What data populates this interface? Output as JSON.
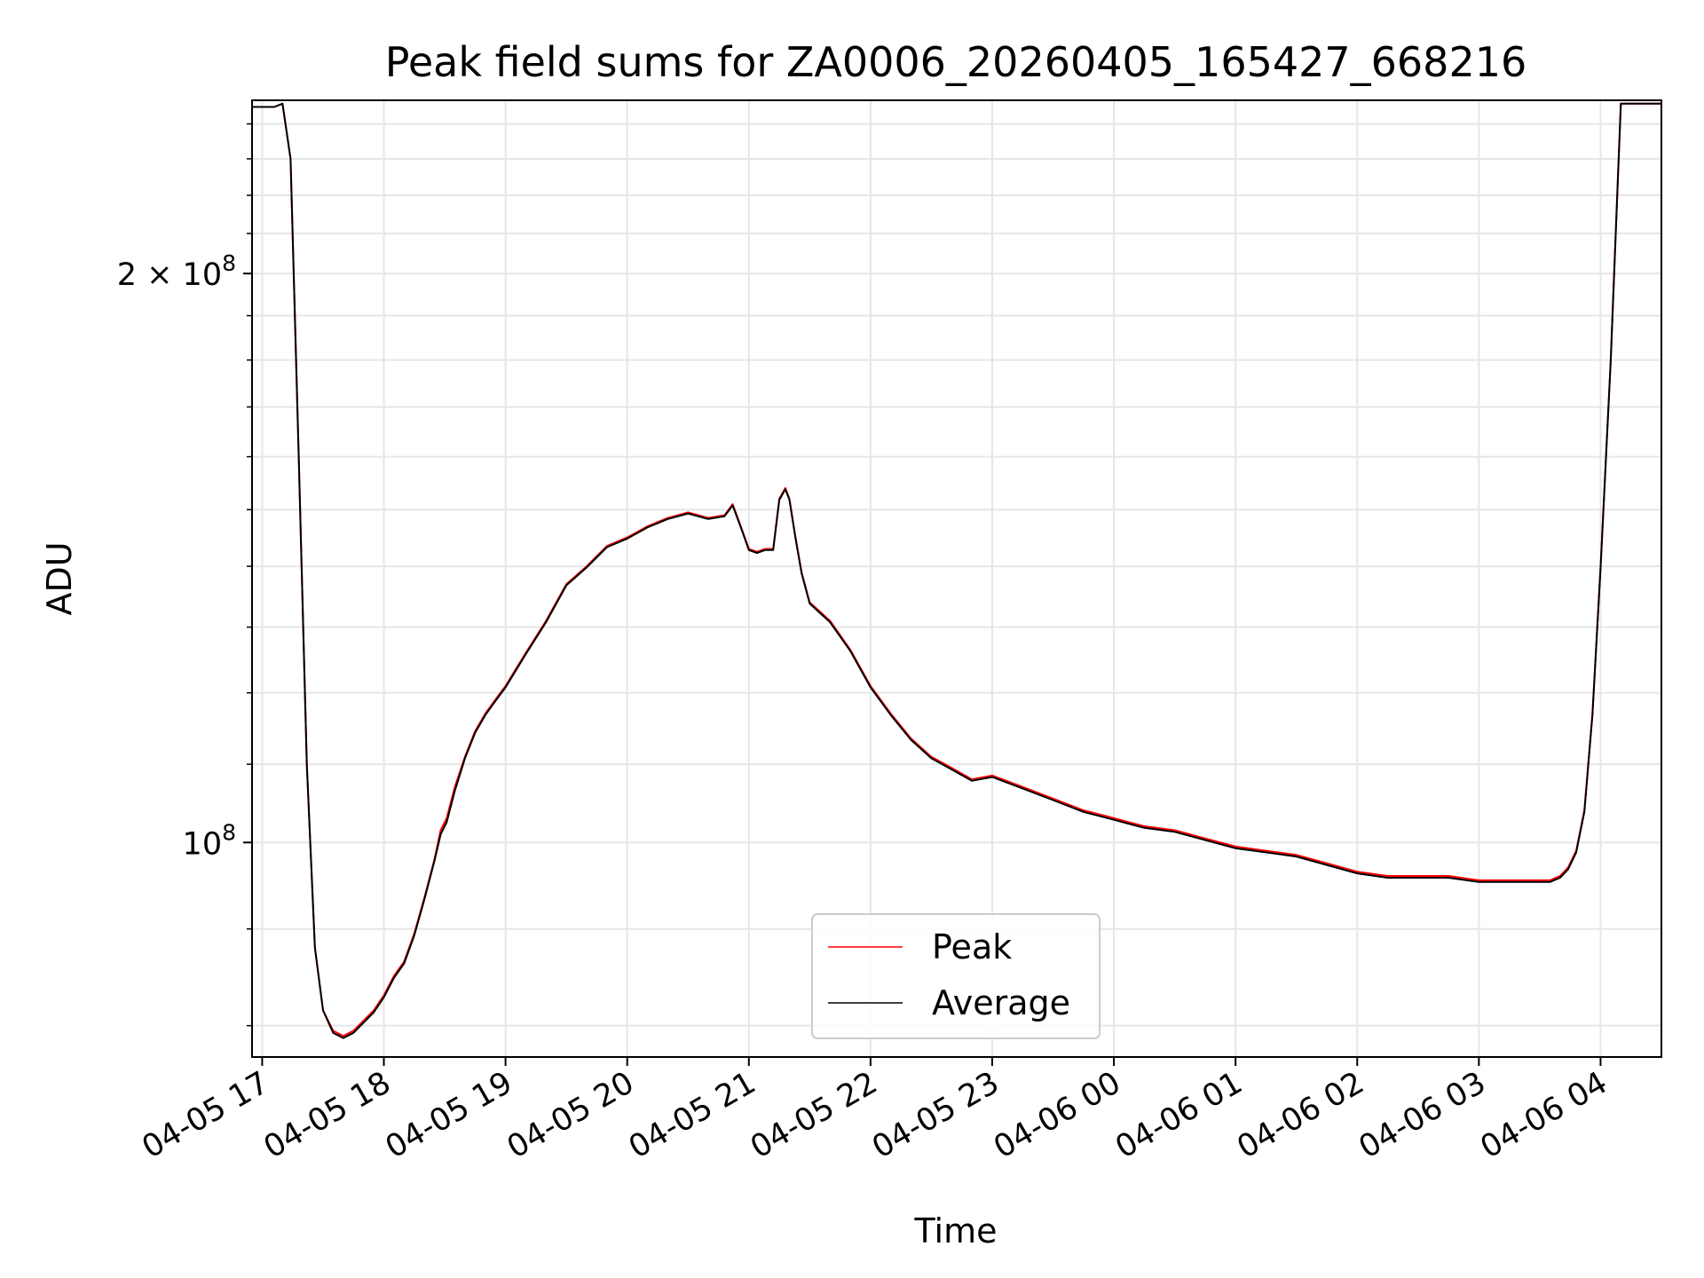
{
  "chart_data": {
    "type": "line",
    "title": "Peak field sums for ZA0006_20260405_165427_668216",
    "xlabel": "Time",
    "ylabel": "ADU",
    "yscale": "log",
    "ylim": [
      77000000,
      247000000
    ],
    "xlim": [
      "04-05 16:55",
      "04-06 04:30"
    ],
    "grid": true,
    "legend_position": "lower-center",
    "x_ticks": [
      "04-05 17",
      "04-05 18",
      "04-05 19",
      "04-05 20",
      "04-05 21",
      "04-05 22",
      "04-05 23",
      "04-06 00",
      "04-06 01",
      "04-06 02",
      "04-06 03",
      "04-06 04"
    ],
    "y_ticks": [
      {
        "value": 100000000,
        "label_base": "10",
        "label_exp": "8"
      },
      {
        "value": 200000000,
        "label_base": "2 × 10",
        "label_exp": "8"
      }
    ],
    "series": [
      {
        "name": "Peak",
        "color": "#ff0000",
        "x": [
          "04-05 16:55",
          "04-05 17:00",
          "04-05 17:03",
          "04-05 17:06",
          "04-05 17:10",
          "04-05 17:14",
          "04-05 17:18",
          "04-05 17:22",
          "04-05 17:26",
          "04-05 17:30",
          "04-05 17:35",
          "04-05 17:40",
          "04-05 17:45",
          "04-05 17:50",
          "04-05 17:55",
          "04-05 18:00",
          "04-05 18:05",
          "04-05 18:10",
          "04-05 18:15",
          "04-05 18:20",
          "04-05 18:25",
          "04-05 18:28",
          "04-05 18:31",
          "04-05 18:35",
          "04-05 18:40",
          "04-05 18:45",
          "04-05 18:50",
          "04-05 18:55",
          "04-05 19:00",
          "04-05 19:10",
          "04-05 19:20",
          "04-05 19:30",
          "04-05 19:40",
          "04-05 19:50",
          "04-05 20:00",
          "04-05 20:10",
          "04-05 20:20",
          "04-05 20:30",
          "04-05 20:40",
          "04-05 20:48",
          "04-05 20:52",
          "04-05 20:56",
          "04-05 21:00",
          "04-05 21:04",
          "04-05 21:08",
          "04-05 21:12",
          "04-05 21:15",
          "04-05 21:18",
          "04-05 21:20",
          "04-05 21:23",
          "04-05 21:26",
          "04-05 21:30",
          "04-05 21:40",
          "04-05 21:50",
          "04-05 22:00",
          "04-05 22:10",
          "04-05 22:20",
          "04-05 22:30",
          "04-05 22:40",
          "04-05 22:50",
          "04-05 23:00",
          "04-05 23:15",
          "04-05 23:30",
          "04-05 23:45",
          "04-06 00:00",
          "04-06 00:15",
          "04-06 00:30",
          "04-06 00:45",
          "04-06 01:00",
          "04-06 01:15",
          "04-06 01:30",
          "04-06 01:45",
          "04-06 02:00",
          "04-06 02:15",
          "04-06 02:30",
          "04-06 02:45",
          "04-06 03:00",
          "04-06 03:15",
          "04-06 03:25",
          "04-06 03:30",
          "04-06 03:35",
          "04-06 03:40",
          "04-06 03:44",
          "04-06 03:48",
          "04-06 03:52",
          "04-06 03:56",
          "04-06 04:00",
          "04-06 04:05",
          "04-06 04:10",
          "04-06 04:20",
          "04-06 04:30"
        ],
        "y": [
          245000000,
          245000000,
          245000000,
          245000000,
          246000000,
          230000000,
          160000000,
          110000000,
          88000000,
          81500000,
          79500000,
          79000000,
          79500000,
          80500000,
          81500000,
          83000000,
          85000000,
          86500000,
          89500000,
          93500000,
          98000000,
          101500000,
          103000000,
          107000000,
          111000000,
          114500000,
          117000000,
          119000000,
          121000000,
          126000000,
          131000000,
          137000000,
          140000000,
          143500000,
          145000000,
          147000000,
          148500000,
          149500000,
          148500000,
          149000000,
          151000000,
          147000000,
          143000000,
          142500000,
          143000000,
          143000000,
          152000000,
          154000000,
          152000000,
          145000000,
          139000000,
          134000000,
          131000000,
          126500000,
          121000000,
          117000000,
          113500000,
          111000000,
          109500000,
          108000000,
          108500000,
          107000000,
          105500000,
          104000000,
          103000000,
          102000000,
          101500000,
          100500000,
          99500000,
          99000000,
          98500000,
          97500000,
          96500000,
          96000000,
          96000000,
          96000000,
          95500000,
          95500000,
          95500000,
          95500000,
          95500000,
          96000000,
          97000000,
          99000000,
          104000000,
          117000000,
          140000000,
          180000000,
          246000000,
          246000000,
          246000000
        ]
      },
      {
        "name": "Average",
        "color": "#000000",
        "x": [
          "04-05 16:55",
          "04-05 17:00",
          "04-05 17:03",
          "04-05 17:06",
          "04-05 17:10",
          "04-05 17:14",
          "04-05 17:18",
          "04-05 17:22",
          "04-05 17:26",
          "04-05 17:30",
          "04-05 17:35",
          "04-05 17:40",
          "04-05 17:45",
          "04-05 17:50",
          "04-05 17:55",
          "04-05 18:00",
          "04-05 18:05",
          "04-05 18:10",
          "04-05 18:15",
          "04-05 18:20",
          "04-05 18:25",
          "04-05 18:28",
          "04-05 18:31",
          "04-05 18:35",
          "04-05 18:40",
          "04-05 18:45",
          "04-05 18:50",
          "04-05 18:55",
          "04-05 19:00",
          "04-05 19:10",
          "04-05 19:20",
          "04-05 19:30",
          "04-05 19:40",
          "04-05 19:50",
          "04-05 20:00",
          "04-05 20:10",
          "04-05 20:20",
          "04-05 20:30",
          "04-05 20:40",
          "04-05 20:48",
          "04-05 20:52",
          "04-05 20:56",
          "04-05 21:00",
          "04-05 21:04",
          "04-05 21:08",
          "04-05 21:12",
          "04-05 21:15",
          "04-05 21:18",
          "04-05 21:20",
          "04-05 21:23",
          "04-05 21:26",
          "04-05 21:30",
          "04-05 21:40",
          "04-05 21:50",
          "04-05 22:00",
          "04-05 22:10",
          "04-05 22:20",
          "04-05 22:30",
          "04-05 22:40",
          "04-05 22:50",
          "04-05 23:00",
          "04-05 23:15",
          "04-05 23:30",
          "04-05 23:45",
          "04-06 00:00",
          "04-06 00:15",
          "04-06 00:30",
          "04-06 00:45",
          "04-06 01:00",
          "04-06 01:15",
          "04-06 01:30",
          "04-06 01:45",
          "04-06 02:00",
          "04-06 02:15",
          "04-06 02:30",
          "04-06 02:45",
          "04-06 03:00",
          "04-06 03:15",
          "04-06 03:25",
          "04-06 03:30",
          "04-06 03:35",
          "04-06 03:40",
          "04-06 03:44",
          "04-06 03:48",
          "04-06 03:52",
          "04-06 03:56",
          "04-06 04:00",
          "04-06 04:05",
          "04-06 04:10",
          "04-06 04:20",
          "04-06 04:30"
        ],
        "y": [
          245000000,
          245000000,
          245000000,
          245000000,
          246000000,
          230000000,
          160000000,
          110000000,
          88000000,
          81500000,
          79300000,
          78800000,
          79300000,
          80300000,
          81300000,
          82800000,
          84800000,
          86300000,
          89300000,
          93300000,
          97800000,
          101000000,
          102500000,
          106500000,
          110800000,
          114300000,
          116800000,
          118800000,
          120800000,
          125800000,
          130800000,
          136800000,
          139800000,
          143300000,
          144800000,
          146800000,
          148300000,
          149300000,
          148300000,
          148800000,
          150800000,
          146800000,
          142800000,
          142300000,
          142800000,
          142800000,
          151800000,
          153800000,
          151800000,
          144800000,
          138800000,
          133800000,
          130800000,
          126300000,
          120800000,
          116800000,
          113300000,
          110800000,
          109300000,
          107800000,
          108300000,
          106800000,
          105300000,
          103800000,
          102800000,
          101800000,
          101300000,
          100300000,
          99300000,
          98800000,
          98300000,
          97300000,
          96300000,
          95800000,
          95800000,
          95800000,
          95300000,
          95300000,
          95300000,
          95300000,
          95300000,
          95800000,
          96800000,
          98800000,
          103800000,
          116800000,
          139800000,
          179800000,
          246000000,
          246000000,
          246000000
        ]
      }
    ]
  }
}
